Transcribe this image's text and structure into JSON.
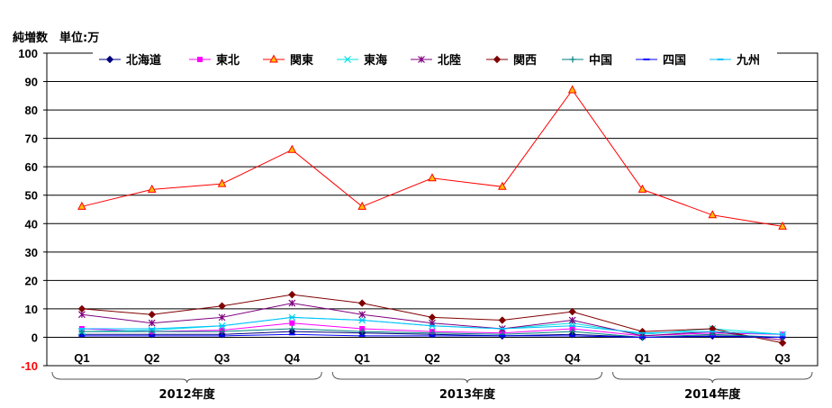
{
  "chart_data": {
    "type": "line",
    "title": "純増数　単位:万",
    "categories": [
      "Q1",
      "Q2",
      "Q3",
      "Q4",
      "Q1",
      "Q2",
      "Q3",
      "Q4",
      "Q1",
      "Q2",
      "Q3"
    ],
    "groups": [
      {
        "label": "2012年度",
        "span": 4
      },
      {
        "label": "2013年度",
        "span": 4
      },
      {
        "label": "2014年度",
        "span": 3
      }
    ],
    "ylim": [
      -10,
      100
    ],
    "yticks": [
      -10,
      0,
      10,
      20,
      30,
      40,
      50,
      60,
      70,
      80,
      90,
      100
    ],
    "grid": true,
    "legend": "top",
    "series": [
      {
        "name": "北海道",
        "color": "#000080",
        "marker": "diamond",
        "values": [
          1,
          1,
          1,
          2,
          1.5,
          1,
          0.5,
          1,
          0,
          0.5,
          0
        ]
      },
      {
        "name": "東北",
        "color": "#ff00ff",
        "marker": "square",
        "values": [
          3,
          2,
          2.5,
          5,
          3,
          2,
          1.5,
          3,
          0.5,
          1.5,
          1
        ]
      },
      {
        "name": "関東",
        "color": "#ff0000",
        "marker": "triangle",
        "values": [
          46,
          52,
          54,
          66,
          46,
          56,
          53,
          87,
          52,
          43,
          39
        ]
      },
      {
        "name": "東海",
        "color": "#00e0e0",
        "marker": "x",
        "values": [
          2,
          2.5,
          4,
          7,
          6,
          4,
          3,
          5,
          1,
          3,
          1
        ]
      },
      {
        "name": "北陸",
        "color": "#800080",
        "marker": "star",
        "values": [
          8,
          5,
          7,
          12,
          8,
          5,
          3,
          6,
          0.5,
          2,
          -1
        ]
      },
      {
        "name": "関西",
        "color": "#800000",
        "marker": "diamond",
        "values": [
          10,
          8,
          11,
          15,
          12,
          7,
          6,
          9,
          2,
          3,
          -2
        ]
      },
      {
        "name": "中国",
        "color": "#008080",
        "marker": "plus",
        "values": [
          2,
          2,
          2,
          3,
          2,
          1.5,
          1,
          2,
          0,
          1,
          0
        ]
      },
      {
        "name": "四国",
        "color": "#0000ff",
        "marker": "dash",
        "values": [
          0.5,
          0.5,
          0.5,
          1,
          0.5,
          0.5,
          0.5,
          0.5,
          0,
          0.3,
          0
        ]
      },
      {
        "name": "九州",
        "color": "#00c0ff",
        "marker": "dash",
        "values": [
          3,
          3,
          4,
          7,
          6,
          4,
          3,
          4,
          1.5,
          2,
          1
        ]
      }
    ]
  }
}
